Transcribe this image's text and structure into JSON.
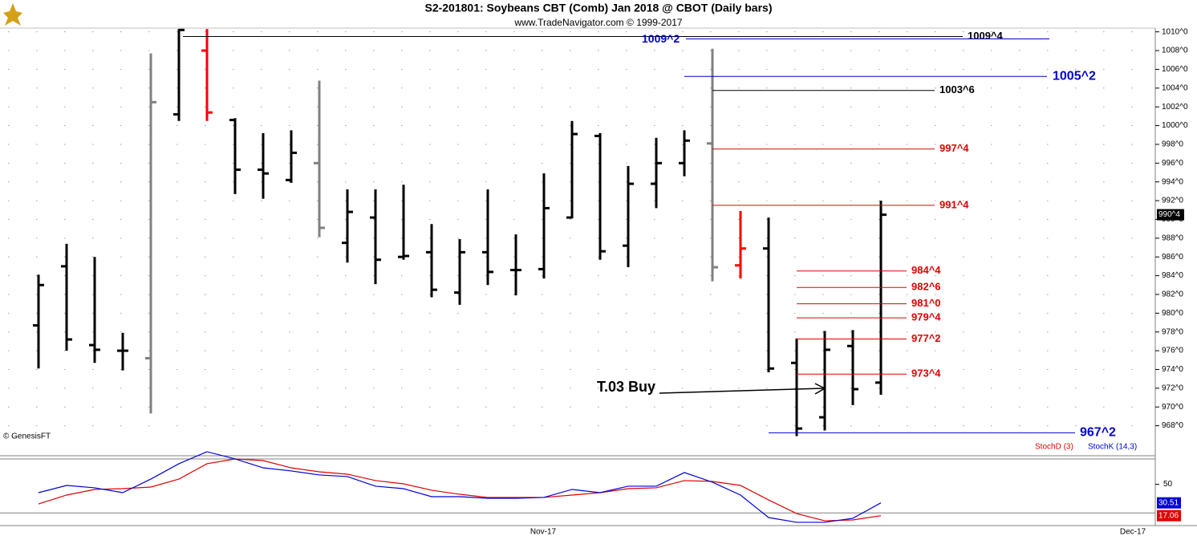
{
  "chart_data": [
    {
      "type": "ohlc",
      "title": "S2-201801:  Soybeans CBT (Comb) Jan 2018 @ CBOT  (Daily bars)",
      "subtitle": "www.TradeNavigator.com © 1999-2017",
      "watermark": "© GenesisFT",
      "open": [
        978.7,
        985.0,
        976.6,
        976.0,
        975.2,
        1001.2,
        1008.0,
        1000.6,
        995.3,
        994.2,
        996.0,
        987.5,
        990.2,
        986.0,
        986.5,
        982.2,
        986.5,
        984.6,
        984.7,
        990.2,
        998.9,
        987.2,
        993.8,
        996.0,
        998.1,
        985.1,
        986.9,
        974.7,
        968.9,
        976.5,
        972.6
      ],
      "high": [
        984.1,
        987.4,
        986.0,
        977.9,
        1007.7,
        1010.3,
        1010.3,
        1000.8,
        999.2,
        999.5,
        1004.8,
        993.2,
        993.2,
        993.7,
        989.5,
        987.9,
        993.2,
        988.4,
        994.9,
        1000.5,
        999.2,
        995.7,
        998.7,
        999.5,
        1008.2,
        990.9,
        990.2,
        977.3,
        978.1,
        978.2,
        992.0
      ],
      "low": [
        974.1,
        976.0,
        974.7,
        973.9,
        969.3,
        1000.5,
        1000.5,
        992.7,
        992.2,
        993.9,
        988.1,
        985.4,
        983.1,
        985.7,
        981.7,
        980.9,
        983.0,
        981.9,
        983.7,
        990.1,
        985.7,
        984.9,
        991.2,
        994.6,
        983.4,
        983.7,
        973.7,
        966.9,
        967.5,
        970.2,
        971.3
      ],
      "close": [
        983.0,
        977.2,
        976.1,
        976.0,
        1002.5,
        1010.2,
        1001.4,
        995.3,
        994.9,
        997.1,
        989.1,
        990.8,
        985.7,
        986.1,
        982.5,
        986.5,
        984.4,
        984.6,
        991.2,
        999.1,
        986.6,
        993.8,
        996.0,
        998.4,
        984.9,
        986.9,
        974.1,
        967.7,
        976.1,
        971.9,
        990.5
      ],
      "bar_colors": [
        "#000000",
        "#000000",
        "#000000",
        "#000000",
        "#808080",
        "#000000",
        "#ff0000",
        "#000000",
        "#000000",
        "#000000",
        "#808080",
        "#000000",
        "#000000",
        "#000000",
        "#000000",
        "#000000",
        "#000000",
        "#000000",
        "#000000",
        "#000000",
        "#000000",
        "#000000",
        "#000000",
        "#000000",
        "#808080",
        "#ff0000",
        "#000000",
        "#000000",
        "#000000",
        "#000000",
        "#000000"
      ],
      "close_label": "990^4",
      "ylim": [
        964.8,
        1010.4
      ],
      "yticks": [
        {
          "value": 968,
          "label": "968^0"
        },
        {
          "value": 970,
          "label": "970^0"
        },
        {
          "value": 972,
          "label": "972^0"
        },
        {
          "value": 974,
          "label": "974^0"
        },
        {
          "value": 976,
          "label": "976^0"
        },
        {
          "value": 978,
          "label": "978^0"
        },
        {
          "value": 980,
          "label": "980^0"
        },
        {
          "value": 982,
          "label": "982^0"
        },
        {
          "value": 984,
          "label": "984^0"
        },
        {
          "value": 986,
          "label": "986^0"
        },
        {
          "value": 988,
          "label": "988^0"
        },
        {
          "value": 990,
          "label": "990^0"
        },
        {
          "value": 992,
          "label": "992^0"
        },
        {
          "value": 994,
          "label": "994^0"
        },
        {
          "value": 996,
          "label": "996^0"
        },
        {
          "value": 998,
          "label": "998^0"
        },
        {
          "value": 1000,
          "label": "1000^0"
        },
        {
          "value": 1002,
          "label": "1002^0"
        },
        {
          "value": 1004,
          "label": "1004^0"
        },
        {
          "value": 1006,
          "label": "1006^0"
        },
        {
          "value": 1008,
          "label": "1008^0"
        },
        {
          "value": 1010,
          "label": "1010^0"
        }
      ],
      "grid": true,
      "levels": [
        {
          "label": "1009^4",
          "value": 1009.5,
          "color": "#000000"
        },
        {
          "label": "1009^2",
          "value": 1009.25,
          "color": "#0000cc"
        },
        {
          "label": "1005^2",
          "value": 1005.25,
          "color": "#0000cc"
        },
        {
          "label": "1003^6",
          "value": 1003.75,
          "color": "#000000"
        },
        {
          "label": "997^4",
          "value": 997.5,
          "color": "#e00000"
        },
        {
          "label": "991^4",
          "value": 991.5,
          "color": "#e00000"
        },
        {
          "label": "984^4",
          "value": 984.5,
          "color": "#e00000"
        },
        {
          "label": "982^6",
          "value": 982.75,
          "color": "#e00000"
        },
        {
          "label": "981^0",
          "value": 981,
          "color": "#e00000"
        },
        {
          "label": "979^4",
          "value": 979.5,
          "color": "#e00000"
        },
        {
          "label": "977^2",
          "value": 977.25,
          "color": "#e00000"
        },
        {
          "label": "973^4",
          "value": 973.5,
          "color": "#e00000"
        },
        {
          "label": "967^2",
          "value": 967.25,
          "color": "#0000cc"
        }
      ],
      "annotation": "T.03 Buy",
      "x_labels": [
        "Nov-17",
        "Dec-17"
      ]
    },
    {
      "type": "line",
      "series": [
        {
          "name": "StochD (3)",
          "color": "#e00000",
          "values": [
            29.4,
            38.7,
            44.6,
            45.4,
            47.1,
            55.5,
            71.6,
            76.6,
            74.9,
            67.3,
            63.1,
            60.6,
            53.9,
            50.5,
            43.8,
            39.5,
            36.2,
            36.2,
            36.2,
            38.7,
            41.2,
            45.4,
            46.3,
            53.9,
            53.0,
            48.8,
            33.6,
            19.3,
            11.7,
            12.6,
            17.06
          ]
        },
        {
          "name": "StochK (14,3)",
          "color": "#0000dd",
          "values": [
            41.2,
            48.8,
            46.3,
            41.2,
            55.5,
            71.6,
            84.2,
            76.6,
            67.3,
            64.0,
            59.8,
            58.1,
            48.0,
            45.4,
            37.0,
            37.0,
            35.3,
            35.3,
            36.2,
            44.6,
            41.2,
            48.0,
            48.0,
            62.3,
            52.2,
            38.7,
            15.1,
            10.1,
            10.1,
            14.3,
            30.51
          ]
        }
      ],
      "ylim": [
        5,
        85
      ],
      "yticks": [
        50
      ],
      "ref_lines": [
        20
      ]
    }
  ]
}
